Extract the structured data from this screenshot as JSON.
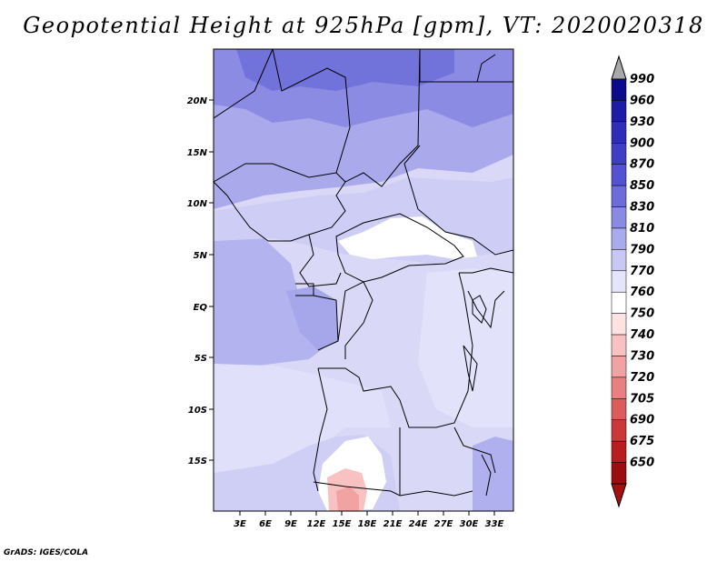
{
  "title": "Geopotential Height at 925hPa [gpm], VT: 2020020318",
  "footer": "GrADS: IGES/COLA",
  "map": {
    "variable": "Geopotential Height",
    "level": "925hPa",
    "units": "gpm",
    "valid_time": "2020020318",
    "lat_ticks": [
      "20N",
      "15N",
      "10N",
      "5N",
      "EQ",
      "5S",
      "10S",
      "15S"
    ],
    "lon_ticks": [
      "3E",
      "6E",
      "9E",
      "12E",
      "15E",
      "18E",
      "21E",
      "24E",
      "27E",
      "30E",
      "33E"
    ]
  },
  "colorbar": {
    "labels": [
      "990",
      "960",
      "930",
      "900",
      "870",
      "850",
      "830",
      "810",
      "790",
      "770",
      "760",
      "750",
      "740",
      "730",
      "720",
      "705",
      "690",
      "675",
      "650"
    ],
    "colors": [
      "#0b0b8c",
      "#1c1ca6",
      "#2d2db8",
      "#3f3fc6",
      "#5252d2",
      "#6c6cdb",
      "#8a8ae4",
      "#aaaaee",
      "#c8c8f5",
      "#e4e4fb",
      "#ffffff",
      "#fde2e2",
      "#f8c2c2",
      "#f1a2a2",
      "#e88080",
      "#dc5c5c",
      "#cc3838",
      "#b81e1e",
      "#9c0e0e"
    ],
    "over_color": "#a8a8a8",
    "under_color": "#a50f0f"
  }
}
